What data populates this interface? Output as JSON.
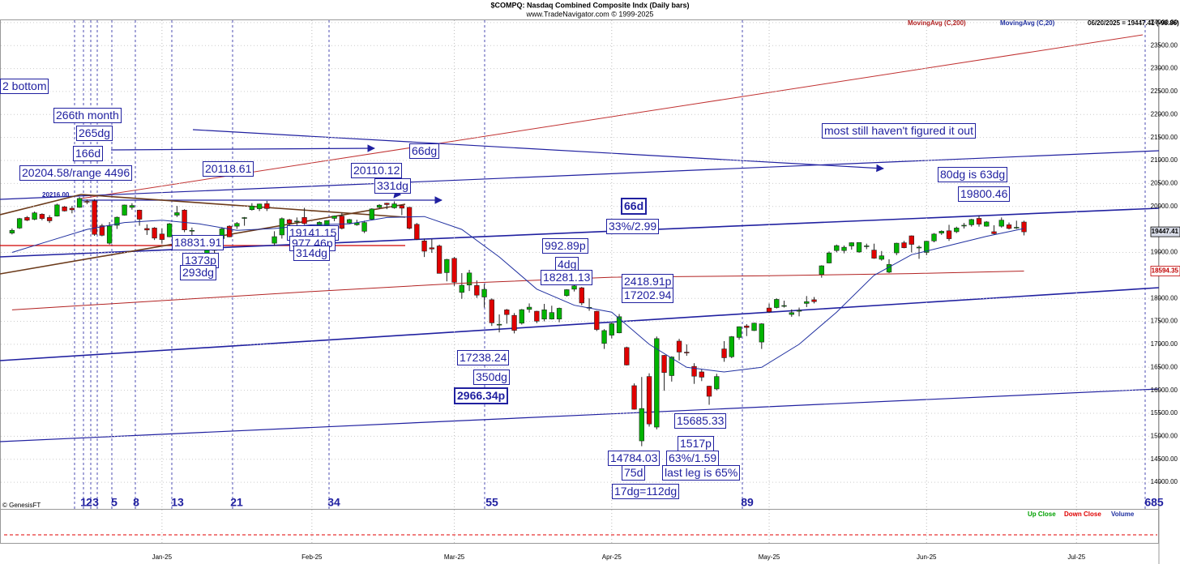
{
  "header": {
    "title": "$COMPQ:  Nasdaq Combined Composite Indx  (Daily bars)",
    "subtitle": "www.TradeNavigator.com © 1999-2025",
    "credit": "© GenesisFT",
    "status": "06/20/2025 = 19447.41 (-98.86)"
  },
  "chart_data": {
    "type": "candlestick",
    "ohlc": [
      [
        19420,
        19520,
        19390,
        19480
      ],
      [
        19530,
        19750,
        19510,
        19735
      ],
      [
        19760,
        19790,
        19680,
        19700
      ],
      [
        19720,
        19890,
        19700,
        19860
      ],
      [
        19830,
        19850,
        19700,
        19737
      ],
      [
        19760,
        19810,
        19640,
        19687
      ],
      [
        19790,
        20060,
        19780,
        20034
      ],
      [
        19990,
        20010,
        19890,
        19902
      ],
      [
        19960,
        20010,
        19850,
        19926
      ],
      [
        19980,
        20204.58,
        19970,
        20173
      ],
      [
        20110,
        20150,
        20050,
        20109
      ],
      [
        20120,
        20160,
        19360,
        19393
      ],
      [
        19580,
        19620,
        19350,
        19372
      ],
      [
        19200,
        19660,
        19170,
        19573
      ],
      [
        19590,
        19780,
        19510,
        19764
      ],
      [
        19810,
        20040,
        19800,
        20031
      ],
      [
        19980,
        20070,
        19930,
        20020
      ],
      [
        19920,
        19930,
        19580,
        19722
      ],
      [
        19520,
        19610,
        19380,
        19487
      ],
      [
        19530,
        19550,
        19270,
        19311
      ],
      [
        19400,
        19520,
        19190,
        19280
      ],
      [
        19340,
        19640,
        19330,
        19622
      ],
      [
        19810,
        20010,
        19770,
        19864
      ],
      [
        19920,
        19940,
        19440,
        19490
      ],
      [
        19470,
        19540,
        19310,
        19479
      ],
      [
        19340,
        19370,
        19090,
        19162
      ],
      [
        18960,
        19100,
        18831.91,
        19088
      ],
      [
        19200,
        19230,
        18960,
        19044
      ],
      [
        19300,
        19550,
        19270,
        19511
      ],
      [
        19570,
        19590,
        19330,
        19338
      ],
      [
        19570,
        19660,
        19510,
        19630
      ],
      [
        19740,
        19770,
        19580,
        19757
      ],
      [
        19930,
        20070,
        19910,
        20009
      ],
      [
        19950,
        20060,
        19900,
        20053
      ],
      [
        20060,
        20120,
        19900,
        19954
      ],
      [
        19200,
        19460,
        19140,
        19342
      ],
      [
        19380,
        19760,
        19300,
        19734
      ],
      [
        19710,
        19730,
        19520,
        19633
      ],
      [
        19680,
        19760,
        19560,
        19681
      ],
      [
        19760,
        19970,
        19600,
        19627
      ],
      [
        19200,
        19490,
        19140,
        19392
      ],
      [
        19410,
        19680,
        19390,
        19654
      ],
      [
        19570,
        19700,
        19530,
        19692
      ],
      [
        19740,
        19800,
        19680,
        19791
      ],
      [
        19790,
        19860,
        19500,
        19523
      ],
      [
        19640,
        19730,
        19620,
        19714
      ],
      [
        19600,
        19710,
        19580,
        19643
      ],
      [
        19460,
        19690,
        19420,
        19650
      ],
      [
        19720,
        19960,
        19700,
        19945
      ],
      [
        19980,
        20050,
        19950,
        20027
      ],
      [
        20070,
        20080,
        19940,
        20041
      ],
      [
        19970,
        20110.12,
        19950,
        20056
      ],
      [
        20020,
        20030,
        19810,
        19962
      ],
      [
        19980,
        19990,
        19500,
        19524
      ],
      [
        19610,
        19640,
        19270,
        19287
      ],
      [
        19250,
        19300,
        18900,
        19026
      ],
      [
        19100,
        19290,
        18990,
        19075
      ],
      [
        19140,
        19170,
        18540,
        18544
      ],
      [
        18560,
        18860,
        18370,
        18847
      ],
      [
        18870,
        18900,
        18270,
        18350
      ],
      [
        18130,
        18550,
        17990,
        18285
      ],
      [
        18290,
        18620,
        18160,
        18553
      ],
      [
        18280,
        18390,
        18010,
        18070
      ],
      [
        18030,
        18310,
        17800,
        18196
      ],
      [
        17970,
        18000,
        17400,
        17468
      ],
      [
        17430,
        17650,
        17260,
        17436
      ],
      [
        17750,
        17770,
        17450,
        17648
      ],
      [
        17630,
        17680,
        17238.24,
        17303
      ],
      [
        17460,
        17770,
        17430,
        17754
      ],
      [
        17760,
        17890,
        17690,
        17808
      ],
      [
        17720,
        17730,
        17460,
        17504
      ],
      [
        17550,
        17880,
        17500,
        17751
      ],
      [
        17550,
        17840,
        17540,
        17692
      ],
      [
        17550,
        17800,
        17480,
        17784
      ],
      [
        18060,
        18200,
        18040,
        18189
      ],
      [
        18200,
        18290,
        18150,
        18272
      ],
      [
        18230,
        18250,
        17850,
        17900
      ],
      [
        17800,
        18000,
        17730,
        17804
      ],
      [
        17720,
        17730,
        17290,
        17323
      ],
      [
        17020,
        17330,
        16900,
        17299
      ],
      [
        17200,
        17480,
        17130,
        17449
      ],
      [
        17250,
        17660,
        17240,
        17601
      ],
      [
        16930,
        16950,
        16540,
        16551
      ],
      [
        16100,
        16150,
        15580,
        15588
      ],
      [
        14900,
        16290,
        14784.03,
        15603
      ],
      [
        16300,
        16370,
        15210,
        15268
      ],
      [
        15200,
        17170,
        15150,
        17125
      ],
      [
        16760,
        16770,
        15990,
        16387
      ],
      [
        16320,
        16740,
        16190,
        16724
      ],
      [
        17070,
        17120,
        16650,
        16832
      ],
      [
        16830,
        17000,
        16750,
        16824
      ],
      [
        16520,
        16590,
        16140,
        16307
      ],
      [
        16400,
        16450,
        16200,
        16286
      ],
      [
        16090,
        16100,
        15685.33,
        15870
      ],
      [
        16030,
        16360,
        16000,
        16300
      ],
      [
        16900,
        17070,
        16620,
        16708
      ],
      [
        16730,
        17180,
        16700,
        17166
      ],
      [
        17150,
        17390,
        17100,
        17383
      ],
      [
        17400,
        17440,
        17180,
        17366
      ],
      [
        17300,
        17470,
        17290,
        17461
      ],
      [
        17050,
        17460,
        16900,
        17446
      ],
      [
        17790,
        17890,
        17680,
        17710
      ],
      [
        17800,
        18000,
        17780,
        17978
      ],
      [
        17840,
        17950,
        17800,
        17844
      ],
      [
        17650,
        17760,
        17600,
        17690
      ],
      [
        17720,
        17800,
        17610,
        17738
      ],
      [
        17890,
        18050,
        17810,
        17928
      ],
      [
        17970,
        18030,
        17890,
        17929
      ],
      [
        18520,
        18720,
        18450,
        18708
      ],
      [
        18770,
        19020,
        18760,
        18988
      ],
      [
        19040,
        19170,
        19000,
        19147
      ],
      [
        19040,
        19150,
        18980,
        19112
      ],
      [
        19140,
        19220,
        19060,
        19211
      ],
      [
        19010,
        19220,
        18990,
        19215
      ],
      [
        19140,
        19190,
        19070,
        19143
      ],
      [
        19050,
        19190,
        18860,
        18873
      ],
      [
        18850,
        19030,
        18820,
        18926
      ],
      [
        18570,
        18850,
        18550,
        18737
      ],
      [
        18990,
        19210,
        18940,
        19200
      ],
      [
        19210,
        19250,
        19090,
        19101
      ],
      [
        19360,
        19370,
        19000,
        19175
      ],
      [
        19100,
        19150,
        18860,
        19114
      ],
      [
        19000,
        19250,
        18940,
        19243
      ],
      [
        19250,
        19420,
        19220,
        19399
      ],
      [
        19420,
        19480,
        19380,
        19460
      ],
      [
        19470,
        19600,
        19250,
        19298
      ],
      [
        19450,
        19560,
        19420,
        19530
      ],
      [
        19580,
        19640,
        19520,
        19591
      ],
      [
        19600,
        19730,
        19560,
        19715
      ],
      [
        19740,
        19800.46,
        19560,
        19615
      ],
      [
        19570,
        19680,
        19560,
        19662
      ],
      [
        19450,
        19590,
        19390,
        19407
      ],
      [
        19570,
        19760,
        19540,
        19701
      ],
      [
        19600,
        19650,
        19500,
        19521
      ],
      [
        19540,
        19690,
        19510,
        19546
      ],
      [
        19660,
        19690,
        19370,
        19447.41
      ]
    ],
    "up_color": "#00b400",
    "down_color": "#e00000",
    "series": [
      {
        "name": "MovingAvg (C,200)",
        "color": "#b22222",
        "x": [
          0,
          20,
          40,
          60,
          80,
          100,
          120,
          135
        ],
        "values": [
          17750,
          17950,
          18150,
          18330,
          18460,
          18490,
          18540,
          18594.35
        ]
      },
      {
        "name": "MovingAvg (C,20)",
        "color": "#2030a0",
        "x": [
          0,
          5,
          10,
          15,
          20,
          25,
          30,
          35,
          40,
          45,
          50,
          55,
          60,
          65,
          70,
          75,
          80,
          85,
          90,
          95,
          100,
          105,
          110,
          115,
          120,
          125,
          130,
          135
        ],
        "values": [
          19000,
          19250,
          19500,
          19650,
          19700,
          19620,
          19480,
          19520,
          19600,
          19620,
          19760,
          19780,
          19500,
          18900,
          18200,
          17850,
          17700,
          17000,
          16500,
          16400,
          16500,
          17000,
          17700,
          18500,
          18950,
          19150,
          19350,
          19520
        ]
      }
    ],
    "xlim": [
      -1.5,
      153
    ],
    "xticks": [
      {
        "value": 20,
        "label": "Jan-25"
      },
      {
        "value": 40,
        "label": "Feb-25"
      },
      {
        "value": 59,
        "label": "Mar-25"
      },
      {
        "value": 80,
        "label": "Apr-25"
      },
      {
        "value": 101,
        "label": "May-25"
      },
      {
        "value": 122,
        "label": "Jun-25"
      },
      {
        "value": 142,
        "label": "Jul-25"
      }
    ],
    "ylim": [
      13420,
      24050
    ],
    "yticks": [
      {
        "value": 14000,
        "label": "14000.00"
      },
      {
        "value": 14500,
        "label": "14500.00"
      },
      {
        "value": 15000,
        "label": "15000.00"
      },
      {
        "value": 15500,
        "label": "15500.00"
      },
      {
        "value": 16000,
        "label": "16000.00"
      },
      {
        "value": 16500,
        "label": "16500.00"
      },
      {
        "value": 17000,
        "label": "17000.00"
      },
      {
        "value": 17500,
        "label": "17500.00"
      },
      {
        "value": 18000,
        "label": "18000.00"
      },
      {
        "value": 19000,
        "label": "19000.00"
      },
      {
        "value": 20000,
        "label": "20000.00"
      },
      {
        "value": 20500,
        "label": "20500.00"
      },
      {
        "value": 21000,
        "label": "21000.00"
      },
      {
        "value": 21500,
        "label": "21500.00"
      },
      {
        "value": 22000,
        "label": "22000.00"
      },
      {
        "value": 22500,
        "label": "22500.00"
      },
      {
        "value": 23000,
        "label": "23000.00"
      },
      {
        "value": 23500,
        "label": "23500.00"
      },
      {
        "value": 24000,
        "label": "24000.00"
      }
    ],
    "grid": true
  },
  "annotations": [
    "2 bottom",
    "266th month",
    "265dg",
    "166d",
    "20204.58/range 4496",
    "20216.00",
    "20118.61",
    "20110.12",
    "331dg",
    "66dg",
    "66d",
    "33%/2.99",
    "992.89p",
    "4dg",
    "18281.13",
    "18831.91",
    "1373p",
    "293dg",
    "19141.15",
    "977.46p",
    "314dg",
    "2418.91p",
    "17202.94",
    "17238.24",
    "350dg",
    "2966.34p",
    "15685.33",
    "1517p",
    "14784.03",
    "63%/1.59",
    "75d",
    "last leg is 65%",
    "17dg=112dg",
    "most still haven't figured it out",
    "80dg is 63dg",
    "19800.46"
  ],
  "cycle_labels": [
    "1",
    "2",
    "3",
    "5",
    "8",
    "13",
    "21",
    "34",
    "55",
    "89",
    "685"
  ],
  "volume_panel": {
    "legend": [
      {
        "name": "Up Close",
        "color": "#00a000"
      },
      {
        "name": "Down Close",
        "color": "#e00000"
      },
      {
        "name": "Volume",
        "color": "#2030a0"
      }
    ]
  }
}
